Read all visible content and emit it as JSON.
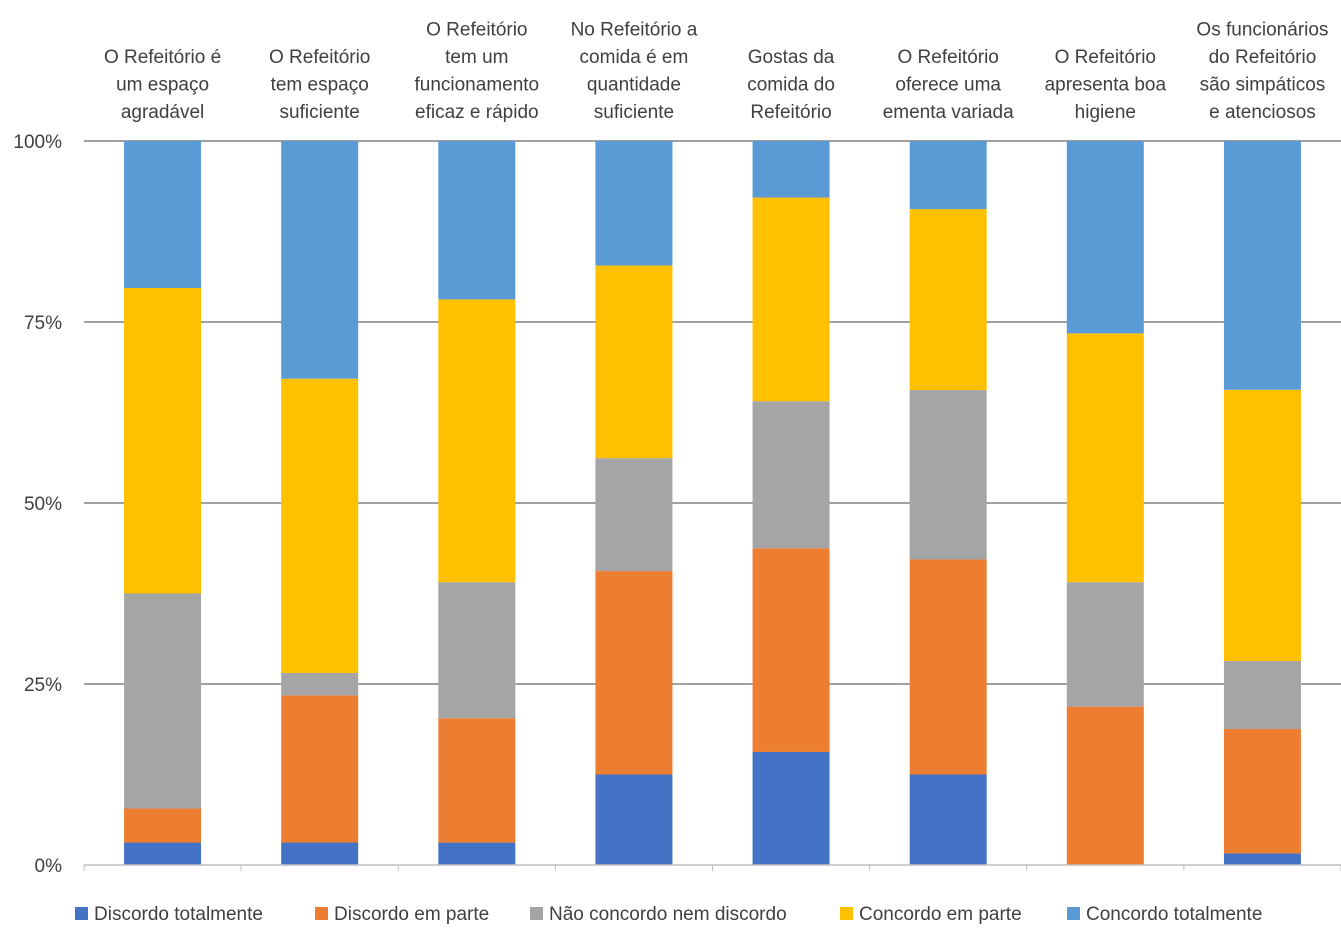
{
  "chart_data": {
    "type": "bar",
    "stacked": "percent",
    "categories": [
      [
        "O Refeitório é",
        "um espaço",
        "agradável"
      ],
      [
        "O Refeitório",
        "tem espaço",
        "suficiente"
      ],
      [
        "O Refeitório",
        "tem um",
        "funcionamento",
        "eficaz e rápido"
      ],
      [
        "No Refeitório a",
        "comida é em",
        "quantidade",
        "suficiente"
      ],
      [
        "Gostas da",
        "comida do",
        "Refeitório"
      ],
      [
        "O Refeitório",
        "oferece uma",
        "ementa variada"
      ],
      [
        "O Refeitório",
        "apresenta boa",
        "higiene"
      ],
      [
        "Os funcionários",
        "do Refeitório",
        "são simpáticos",
        "e atenciosos"
      ]
    ],
    "series": [
      {
        "name": "Discordo totalmente",
        "color": "#4472C4",
        "values": [
          3.1,
          3.1,
          3.1,
          12.5,
          15.6,
          12.5,
          0.0,
          1.6
        ]
      },
      {
        "name": "Discordo em parte",
        "color": "#ED7D31",
        "values": [
          4.7,
          20.3,
          17.2,
          28.1,
          28.1,
          29.7,
          21.9,
          17.2
        ]
      },
      {
        "name": "Não concordo nem discordo",
        "color": "#A5A5A5",
        "values": [
          29.7,
          3.1,
          18.8,
          15.6,
          20.3,
          23.4,
          17.2,
          9.4
        ]
      },
      {
        "name": "Concordo em parte",
        "color": "#FFC000",
        "values": [
          42.2,
          40.6,
          39.1,
          26.6,
          28.1,
          25.0,
          34.4,
          37.5
        ]
      },
      {
        "name": "Concordo totalmente",
        "color": "#5B9BD5",
        "values": [
          20.3,
          32.8,
          21.9,
          17.2,
          7.8,
          9.4,
          26.6,
          34.4
        ]
      }
    ],
    "y_ticks": [
      "0%",
      "25%",
      "50%",
      "75%",
      "100%"
    ],
    "ylim": [
      0,
      100
    ],
    "grid": true,
    "legend_position": "bottom",
    "xlabel": "",
    "ylabel": ""
  }
}
